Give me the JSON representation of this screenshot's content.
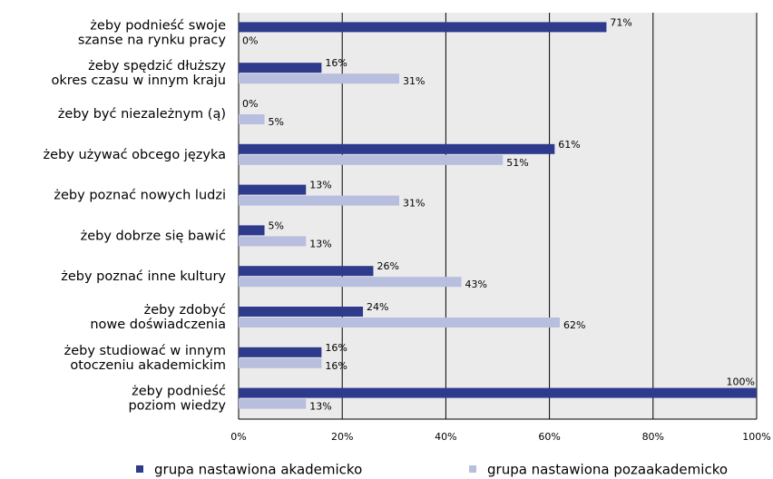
{
  "chart_data": {
    "type": "bar",
    "orientation": "horizontal",
    "categories": [
      "żeby podnieść swoje\nszanse na rynku pracy",
      "żeby spędzić dłuższy\nokres czasu w innym kraju",
      "żeby być niezależnym (ą)",
      "żeby używać obcego języka",
      "żeby poznać nowych ludzi",
      "żeby dobrze się bawić",
      "żeby poznać inne kultury",
      "żeby zdobyć\nnowe doświadczenia",
      "żeby studiować w innym\notoczeniu akademickim",
      "żeby podnieść\npoziom wiedzy"
    ],
    "series": [
      {
        "name": "grupa nastawiona akademicko",
        "color": "#2e3a8c",
        "values": [
          71,
          16,
          0,
          61,
          13,
          5,
          26,
          24,
          16,
          100
        ],
        "value_labels": [
          "71%",
          "16%",
          "0%",
          "61%",
          "13%",
          "5%",
          "26%",
          "24%",
          "16%",
          "100%"
        ]
      },
      {
        "name": "grupa nastawiona pozaakademicko",
        "color": "#b8bedd",
        "values": [
          0,
          31,
          5,
          51,
          31,
          13,
          43,
          62,
          16,
          13
        ],
        "value_labels": [
          "0%",
          "31%",
          "5%",
          "51%",
          "31%",
          "13%",
          "43%",
          "62%",
          "16%",
          "13%"
        ]
      }
    ],
    "xlim": [
      0,
      100
    ],
    "xticks": [
      {
        "value": 0,
        "label": "0%"
      },
      {
        "value": 20,
        "label": "20%"
      },
      {
        "value": 40,
        "label": "40%"
      },
      {
        "value": 60,
        "label": "60%"
      },
      {
        "value": 80,
        "label": "80%"
      },
      {
        "value": 100,
        "label": "100%"
      }
    ],
    "grid": true,
    "legend": "bottom"
  }
}
